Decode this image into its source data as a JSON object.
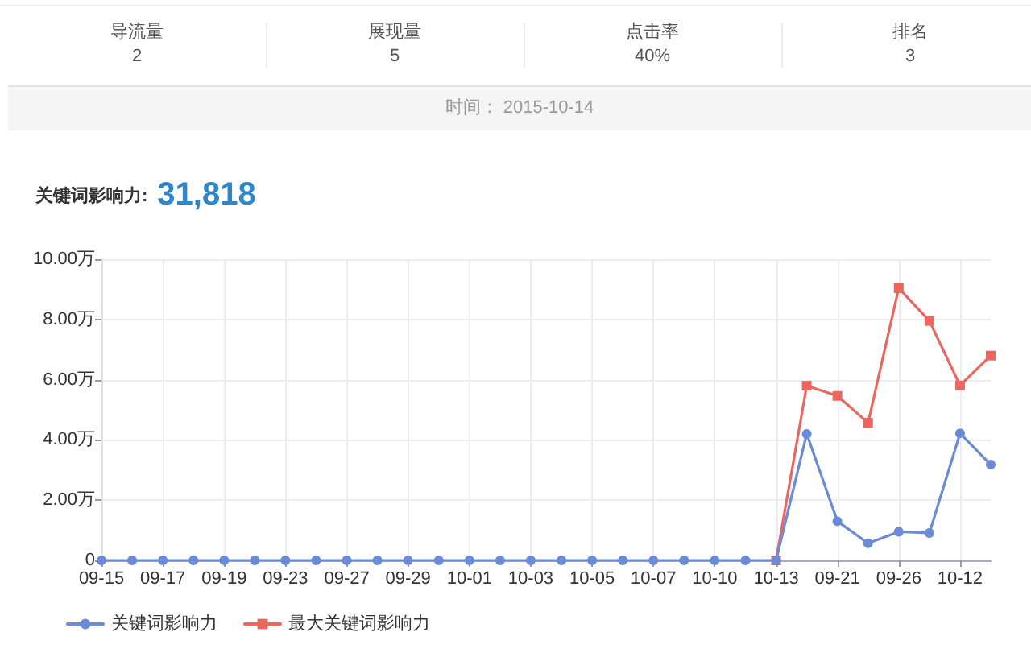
{
  "chart_data": [
    {
      "type": "other",
      "annotations": [
        "导流量",
        "2",
        "展现量",
        "5",
        "点击率",
        "40%",
        "排名",
        "3",
        "时间： 2015-10-14"
      ]
    },
    {
      "type": "line",
      "title": "关键词影响力:",
      "subtitle": "31,818",
      "categories": [
        "09-15",
        null,
        "09-17",
        null,
        "09-19",
        null,
        "09-23",
        null,
        "09-27",
        null,
        "09-29",
        null,
        "10-01",
        null,
        "10-03",
        null,
        "10-05",
        null,
        "10-07",
        null,
        "10-10",
        null,
        "10-13",
        null,
        "09-21",
        null,
        "09-26",
        null,
        "10-12",
        null
      ],
      "series": [
        {
          "name": "关键词影响力",
          "color": "#6b8bd6",
          "marker": "circle",
          "values": [
            0,
            0,
            0,
            0,
            0,
            0,
            0,
            0,
            0,
            0,
            0,
            0,
            0,
            0,
            0,
            0,
            0,
            0,
            0,
            0,
            0,
            0,
            0,
            4.2,
            1.3,
            0.57,
            0.95,
            0.91,
            4.22,
            3.18
          ]
        },
        {
          "name": "最大关键词影响力",
          "color": "#e9675f",
          "marker": "square",
          "values": [
            null,
            null,
            null,
            null,
            null,
            null,
            null,
            null,
            null,
            null,
            null,
            null,
            null,
            null,
            null,
            null,
            null,
            null,
            null,
            null,
            null,
            null,
            0,
            5.8,
            5.46,
            4.57,
            9.04,
            7.95,
            5.81,
            6.8
          ]
        }
      ],
      "ylim": [
        0,
        10
      ],
      "yticks": [
        0,
        {
          "value": 2,
          "label": "2.00万"
        },
        {
          "value": 4,
          "label": "4.00万"
        },
        {
          "value": 6,
          "label": "6.00万"
        },
        {
          "value": 8,
          "label": "8.00万"
        },
        {
          "value": 10,
          "label": "10.00万"
        }
      ],
      "grid": true,
      "legend": "bottom left"
    }
  ]
}
